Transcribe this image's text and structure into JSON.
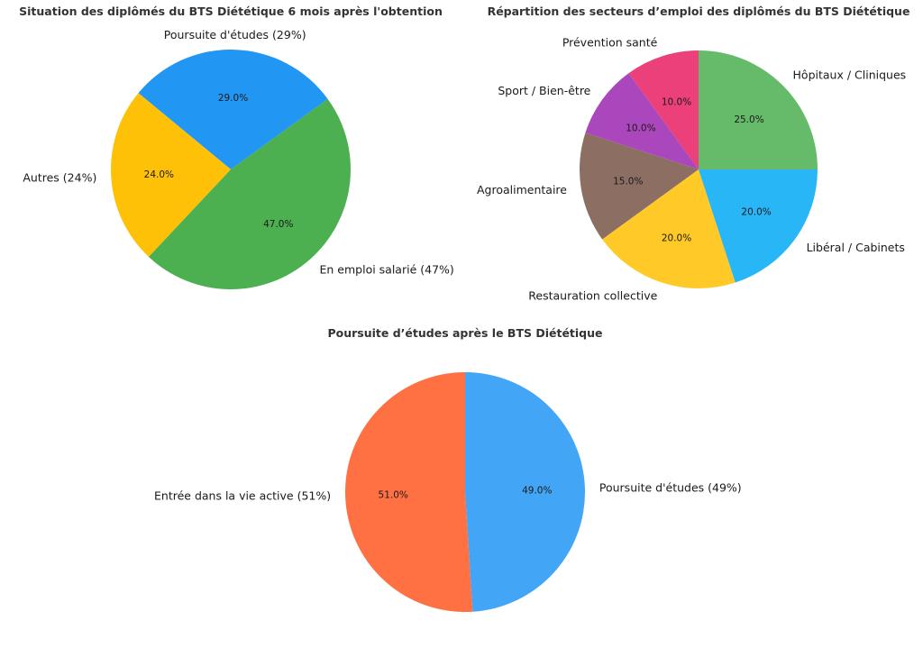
{
  "chart_data": [
    {
      "type": "pie",
      "title": "Situation des diplômés du BTS Diététique 6 mois après l'obtention",
      "start_angle": 36,
      "labels": [
        "Poursuite d'études (29%)",
        "Autres (24%)",
        "En emploi salarié (47%)"
      ],
      "values": [
        29.0,
        24.0,
        47.0
      ],
      "value_labels": [
        "29.0%",
        "24.0%",
        "47.0%"
      ],
      "colors": [
        "#2196f3",
        "#ffc107",
        "#4caf50"
      ]
    },
    {
      "type": "pie",
      "title": "Répartition des secteurs d’emploi des diplômés du BTS Diététique",
      "start_angle": 90,
      "labels": [
        "Prévention santé",
        "Sport / Bien-être",
        "Agroalimentaire",
        "Restauration collective",
        "Libéral / Cabinets",
        "Hôpitaux / Cliniques"
      ],
      "values": [
        10.0,
        10.0,
        15.0,
        20.0,
        20.0,
        25.0
      ],
      "value_labels": [
        "10.0%",
        "10.0%",
        "15.0%",
        "20.0%",
        "20.0%",
        "25.0%"
      ],
      "colors": [
        "#ec407a",
        "#ab47bc",
        "#8d6e63",
        "#ffca28",
        "#29b6f6",
        "#66bb6a"
      ]
    },
    {
      "type": "pie",
      "title": "Poursuite d’études après le BTS Diététique",
      "start_angle": 90,
      "labels": [
        "Entrée dans la vie active (51%)",
        "Poursuite d'études (49%)"
      ],
      "values": [
        51.0,
        49.0
      ],
      "value_labels": [
        "51.0%",
        "49.0%"
      ],
      "colors": [
        "#ff7043",
        "#42a5f5"
      ]
    }
  ]
}
